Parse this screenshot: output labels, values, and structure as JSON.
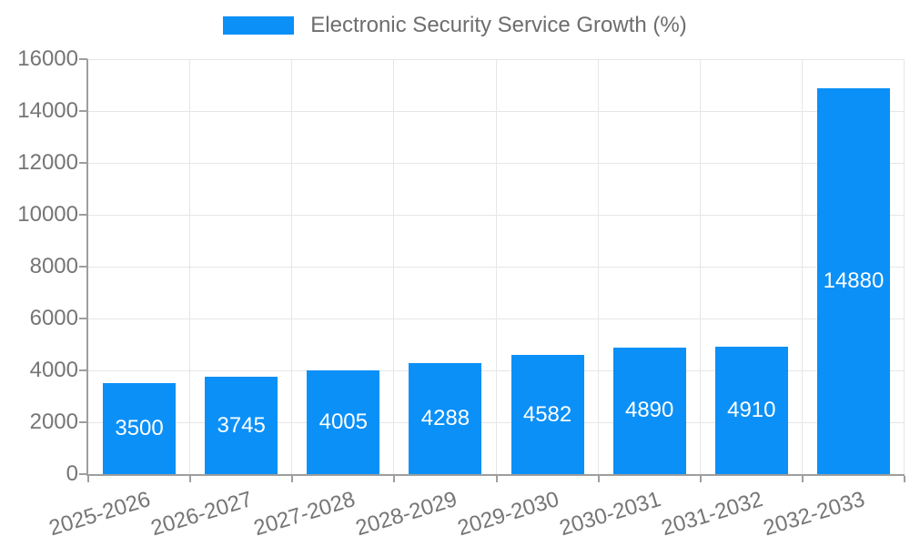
{
  "chart_data": {
    "type": "bar",
    "title": "Electronic Security Service Growth (%)",
    "legend": {
      "position": "top",
      "label": "Electronic Security Service Growth (%)"
    },
    "categories": [
      "2025-2026",
      "2026-2027",
      "2027-2028",
      "2028-2029",
      "2029-2030",
      "2030-2031",
      "2031-2032",
      "2032-2033"
    ],
    "values": [
      3500,
      3745,
      4005,
      4288,
      4582,
      4890,
      4910,
      14880
    ],
    "xlabel": "",
    "ylabel": "",
    "ylim": [
      0,
      16000
    ],
    "ytick_step": 2000,
    "yticks": [
      0,
      2000,
      4000,
      6000,
      8000,
      10000,
      12000,
      14000,
      16000
    ],
    "grid": true,
    "value_labels": "inside-center",
    "colors": {
      "bar": "#0b90f8",
      "axis_line": "#9e9e9e",
      "gridline": "#e6e6e6",
      "tick_text": "#757575",
      "legend_text": "#6d6d6d",
      "value_label_text": "#ffffff",
      "background": "#ffffff"
    }
  }
}
